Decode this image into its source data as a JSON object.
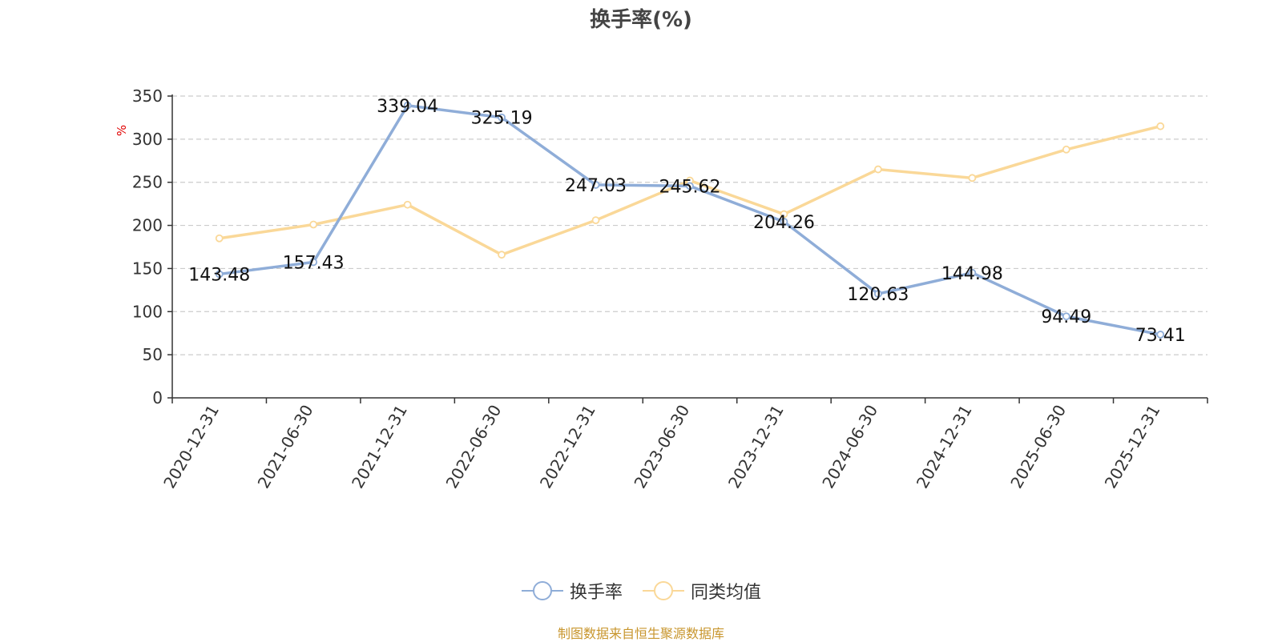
{
  "title": "换手率(%)",
  "source_note": "制图数据来自恒生聚源数据库",
  "colors": {
    "series1": "#8fadd8",
    "series2": "#fad898",
    "grid": "#cccccc",
    "axis": "#333333",
    "unit": "#e00000"
  },
  "chart_data": {
    "type": "line",
    "title": "换手率(%)",
    "ylabel": "%",
    "ylim": [
      0,
      350
    ],
    "yticks": [
      0,
      50,
      100,
      150,
      200,
      250,
      300,
      350
    ],
    "grid": true,
    "legend_position": "bottom",
    "categories": [
      "2020-12-31",
      "2021-06-30",
      "2021-12-31",
      "2022-06-30",
      "2022-12-31",
      "2023-06-30",
      "2023-12-31",
      "2024-06-30",
      "2024-12-31",
      "2025-06-30",
      "2025-12-31"
    ],
    "series": [
      {
        "name": "换手率",
        "values": [
          143.48,
          157.43,
          339.04,
          325.19,
          247.03,
          245.62,
          204.26,
          120.63,
          144.98,
          94.49,
          73.41
        ],
        "labels": [
          "143.48",
          "157.43",
          "339.04",
          "325.19",
          "247.03",
          "245.62",
          "204.26",
          "120.63",
          "144.98",
          "94.49",
          "73.41"
        ]
      },
      {
        "name": "同类均值",
        "values": [
          185,
          201,
          224,
          166,
          206,
          252,
          213,
          265,
          255,
          288,
          315
        ]
      }
    ]
  }
}
